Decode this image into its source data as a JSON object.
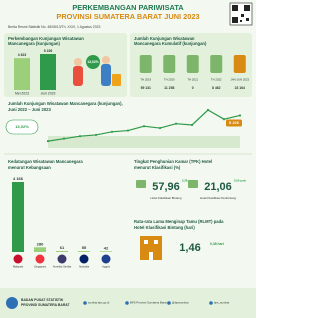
{
  "header": {
    "title_1": "PERKEMBANGAN PARIWISATA",
    "title_2": "PROVINSI SUMATERA BARAT JUNI 2023",
    "subtitle": "Berita Resmi Statistik No. 48/08/13/Th. XXVI, 1 Agustus 2023"
  },
  "monthly": {
    "title_1": "Perkembangan Kunjungan Wisatawan",
    "title_2": "Mancanegara (kunjungan)",
    "categories": [
      "Mei 2023",
      "Juni 2023"
    ],
    "values": [
      4623,
      5226
    ],
    "value_labels": [
      "4 623",
      "5 226"
    ],
    "change": "13,02%"
  },
  "cumulative": {
    "title_1": "Jumlah Kunjungan Wisatawan",
    "title_2": "Mancanegara Kumulatif (kunjungan)",
    "categories": [
      "TH 2019",
      "TH 2020",
      "TH 2021",
      "TH 2022",
      "JAN-JUN 2023"
    ],
    "values": [
      "59 131",
      "11 258",
      "0",
      "8 462",
      "23 164"
    ]
  },
  "trend": {
    "title_1": "Jumlah Kunjungan Wisatawan Mancanegara (kunjungan),",
    "title_2": "Juni 2022 – Juni 2023",
    "change": "13,02%",
    "values": [
      1100,
      1500,
      1900,
      2100,
      2600,
      2800,
      3500,
      3200,
      3900,
      3700,
      6100,
      4623,
      5226
    ],
    "last_label": "5 226"
  },
  "nationality": {
    "title_1": "Kedatangan Wisatawan Mancanegara",
    "title_2": "menurut Kebangsaan",
    "categories": [
      "Malaysia",
      "Singapura",
      "Amerika Serikat",
      "Australia",
      "Inggris"
    ],
    "values": [
      4166,
      280,
      61,
      55,
      42
    ],
    "value_labels": [
      "4 166",
      "280",
      "61",
      "55",
      "42"
    ]
  },
  "tpk": {
    "title_1": "Tingkat Penghunian Kamar (TPK) Hotel",
    "title_2": "menurut Klasifikasi (%)",
    "items": [
      {
        "value": "57,96",
        "label": "Hotel Klasifikasi Bintang",
        "change": "2,28 poin"
      },
      {
        "value": "21,06",
        "label": "Hotel Klasifikasi Nonbintang",
        "change": "5,55 poin"
      }
    ]
  },
  "rlmt": {
    "title_1": "Rata-rata Lama Menginap Tamu (RLMT) pada",
    "title_2": "Hotel Klasifikasi Bintang (hari)",
    "value": "1,46",
    "change": "0,38 hari"
  },
  "footer": {
    "org_1": "BADAN PUSAT STATISTIK",
    "org_2": "PROVINSI SUMATERA BARAT",
    "links": [
      "sumbar.bps.go.id",
      "BPS Provinsi Sumatera Barat",
      "@bpssumbar",
      "bps_sumbar"
    ]
  }
}
